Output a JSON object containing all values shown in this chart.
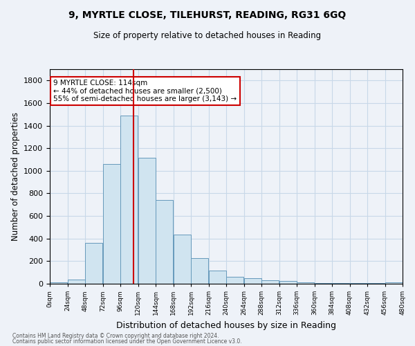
{
  "title1": "9, MYRTLE CLOSE, TILEHURST, READING, RG31 6GQ",
  "title2": "Size of property relative to detached houses in Reading",
  "xlabel": "Distribution of detached houses by size in Reading",
  "ylabel": "Number of detached properties",
  "bar_color": "#d0e4f0",
  "bar_edge_color": "#6699bb",
  "grid_color": "#c8d8e8",
  "bin_edges": [
    0,
    24,
    48,
    72,
    96,
    120,
    144,
    168,
    192,
    216,
    240,
    264,
    288,
    312,
    336,
    360,
    384,
    408,
    432,
    456,
    480
  ],
  "bar_heights": [
    15,
    35,
    360,
    1060,
    1490,
    1115,
    740,
    435,
    225,
    115,
    60,
    48,
    28,
    22,
    10,
    8,
    8,
    5,
    5,
    15
  ],
  "property_size": 114,
  "vline_color": "#cc0000",
  "annotation_text": "9 MYRTLE CLOSE: 114sqm\n← 44% of detached houses are smaller (2,500)\n55% of semi-detached houses are larger (3,143) →",
  "annotation_box_color": "#ffffff",
  "annotation_box_edge": "#cc0000",
  "footer1": "Contains HM Land Registry data © Crown copyright and database right 2024.",
  "footer2": "Contains public sector information licensed under the Open Government Licence v3.0.",
  "ylim": [
    0,
    1900
  ],
  "xlim": [
    0,
    480
  ],
  "tick_labels": [
    "0sqm",
    "24sqm",
    "48sqm",
    "72sqm",
    "96sqm",
    "120sqm",
    "144sqm",
    "168sqm",
    "192sqm",
    "216sqm",
    "240sqm",
    "264sqm",
    "288sqm",
    "312sqm",
    "336sqm",
    "360sqm",
    "384sqm",
    "408sqm",
    "432sqm",
    "456sqm",
    "480sqm"
  ],
  "background_color": "#eef2f8"
}
